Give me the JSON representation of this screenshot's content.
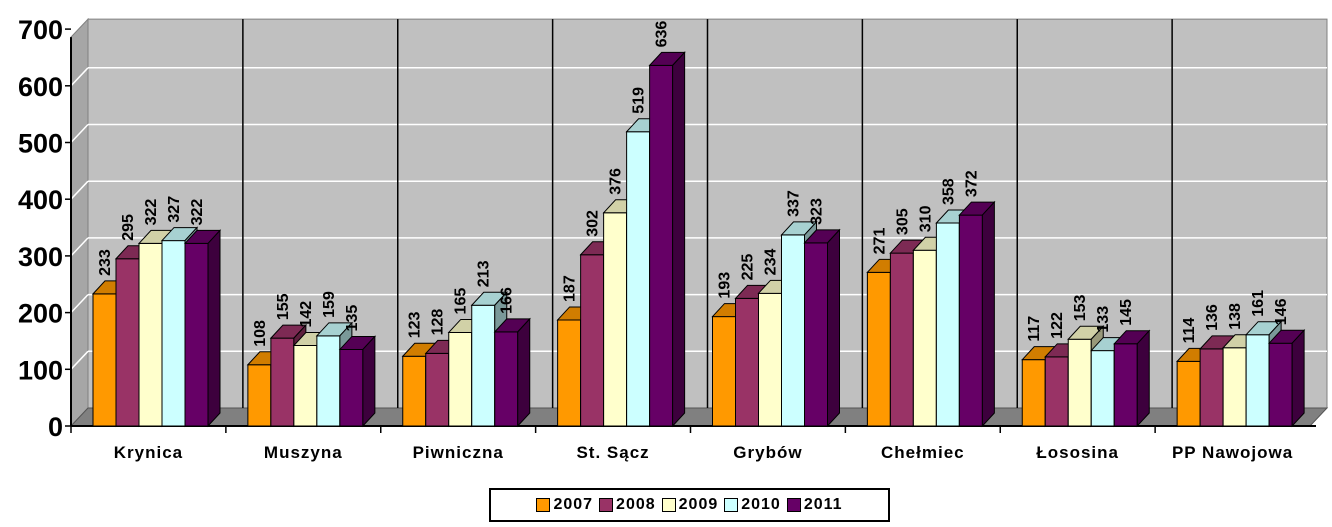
{
  "chart_data": {
    "type": "bar",
    "categories": [
      "Krynica",
      "Muszyna",
      "Piwniczna",
      "St. Sącz",
      "Grybów",
      "Chełmiec",
      "Łososina",
      "PP Nawojowa"
    ],
    "series": [
      {
        "name": "2007",
        "values": [
          233,
          108,
          123,
          187,
          193,
          271,
          117,
          114
        ]
      },
      {
        "name": "2008",
        "values": [
          295,
          155,
          128,
          302,
          225,
          305,
          122,
          136
        ]
      },
      {
        "name": "2009",
        "values": [
          322,
          142,
          165,
          376,
          234,
          310,
          153,
          138
        ]
      },
      {
        "name": "2010",
        "values": [
          327,
          159,
          213,
          519,
          337,
          358,
          133,
          161
        ]
      },
      {
        "name": "2011",
        "values": [
          322,
          135,
          166,
          636,
          323,
          372,
          145,
          146
        ]
      }
    ],
    "data_labels": [
      [
        "233",
        "295",
        "322",
        "327",
        "322"
      ],
      [
        "108",
        "155",
        "142",
        "159",
        "135"
      ],
      [
        "123",
        "128",
        "165",
        "213",
        "166"
      ],
      [
        "187",
        "302",
        "376",
        "519",
        "636"
      ],
      [
        "193",
        "225",
        "234",
        "337",
        "323"
      ],
      [
        "271",
        "305",
        "310",
        "358",
        "372"
      ],
      [
        "117",
        "122",
        "153",
        "133",
        "145"
      ],
      [
        "114",
        "136",
        "138",
        "161",
        "146"
      ]
    ],
    "colors": [
      "#ff9900",
      "#993366",
      "#ffffcc",
      "#ccffff",
      "#660066"
    ],
    "ylim": [
      0,
      700
    ],
    "yticks": [
      "0",
      "100",
      "200",
      "300",
      "400",
      "500",
      "600",
      "700"
    ],
    "title": "",
    "xlabel": "",
    "ylabel": "",
    "grid": true,
    "legend_position": "bottom-center"
  }
}
